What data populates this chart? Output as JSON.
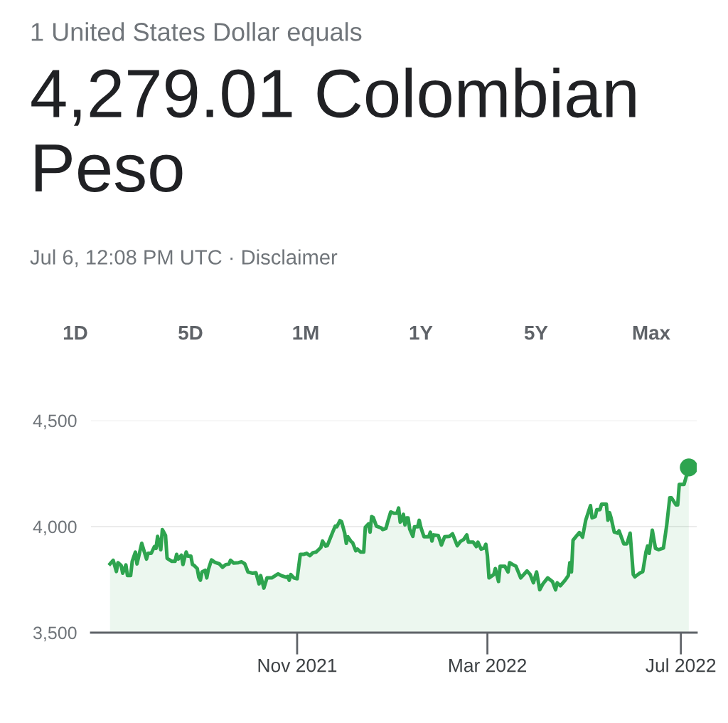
{
  "chart_data": {
    "type": "area",
    "title": "4,279.01 Colombian Peso",
    "annotations": [
      "1 United States Dollar equals",
      "Jul 6, 12:08 PM UTC · Disclaimer",
      "1D",
      "5D",
      "1M",
      "1Y",
      "5Y",
      "Max"
    ],
    "xlim": [
      "2021-06-24",
      "2022-07-11"
    ],
    "xticks": [
      {
        "value": "2021-11-01",
        "label": "Nov 2021"
      },
      {
        "value": "2022-03-01",
        "label": "Mar 2022"
      },
      {
        "value": "2022-07-01",
        "label": "Jul 2022"
      }
    ],
    "ylim": [
      3500,
      4500
    ],
    "yticks": [
      {
        "value": 3500,
        "label": "3,500"
      },
      {
        "value": 4000,
        "label": "4,000"
      },
      {
        "value": 4500,
        "label": "4,500"
      }
    ],
    "grid": "y",
    "series": [
      {
        "color": "#2ea44f",
        "x": [
          "2021-07-06",
          "2021-07-08",
          "2021-07-10",
          "2021-07-11",
          "2021-07-13",
          "2021-07-14",
          "2021-07-16",
          "2021-07-17",
          "2021-07-19",
          "2021-07-20",
          "2021-07-22",
          "2021-07-23",
          "2021-07-26",
          "2021-07-29",
          "2021-07-30",
          "2021-08-01",
          "2021-08-03",
          "2021-08-04",
          "2021-08-05",
          "2021-08-07",
          "2021-08-08",
          "2021-08-10",
          "2021-08-11",
          "2021-08-14",
          "2021-08-16",
          "2021-08-17",
          "2021-08-18",
          "2021-08-20",
          "2021-08-21",
          "2021-08-23",
          "2021-08-24",
          "2021-08-26",
          "2021-08-27",
          "2021-08-28",
          "2021-08-30",
          "2021-08-31",
          "2021-09-01",
          "2021-09-02",
          "2021-09-04",
          "2021-09-05",
          "2021-09-06",
          "2021-09-08",
          "2021-09-10",
          "2021-09-13",
          "2021-09-15",
          "2021-09-17",
          "2021-09-19",
          "2021-09-20",
          "2021-09-22",
          "2021-09-25",
          "2021-09-27",
          "2021-09-29",
          "2021-10-01",
          "2021-10-04",
          "2021-10-06",
          "2021-10-08",
          "2021-10-09",
          "2021-10-11",
          "2021-10-13",
          "2021-10-16",
          "2021-10-20",
          "2021-10-22",
          "2021-10-25",
          "2021-10-26",
          "2021-10-27",
          "2021-10-28",
          "2021-10-30",
          "2021-11-01",
          "2021-11-03",
          "2021-11-05",
          "2021-11-07",
          "2021-11-09",
          "2021-11-11",
          "2021-11-13",
          "2021-11-16",
          "2021-11-17",
          "2021-11-19",
          "2021-11-20",
          "2021-11-23",
          "2021-11-25",
          "2021-11-26",
          "2021-11-28",
          "2021-11-29",
          "2021-12-01",
          "2021-12-02",
          "2021-12-03",
          "2021-12-05",
          "2021-12-06",
          "2021-12-08",
          "2021-12-09",
          "2021-12-11",
          "2021-12-13",
          "2021-12-14",
          "2021-12-16",
          "2021-12-17",
          "2021-12-18",
          "2021-12-19",
          "2021-12-21",
          "2021-12-24",
          "2021-12-25",
          "2021-12-27",
          "2021-12-28",
          "2021-12-30",
          "2022-01-01",
          "2022-01-03",
          "2022-01-04",
          "2022-01-05",
          "2022-01-06",
          "2022-01-07",
          "2022-01-08",
          "2022-01-09",
          "2022-01-10",
          "2022-01-11",
          "2022-01-13",
          "2022-01-14",
          "2022-01-16",
          "2022-01-17",
          "2022-01-18",
          "2022-01-20",
          "2022-01-23",
          "2022-01-24",
          "2022-01-25",
          "2022-01-26",
          "2022-01-29",
          "2022-01-31",
          "2022-02-02",
          "2022-02-05",
          "2022-02-07",
          "2022-02-10",
          "2022-02-12",
          "2022-02-14",
          "2022-02-16",
          "2022-02-17",
          "2022-02-20",
          "2022-02-22",
          "2022-02-23",
          "2022-02-25",
          "2022-02-27",
          "2022-02-28",
          "2022-03-01",
          "2022-03-02",
          "2022-03-05",
          "2022-03-06",
          "2022-03-08",
          "2022-03-09",
          "2022-03-12",
          "2022-03-14",
          "2022-03-15",
          "2022-03-17",
          "2022-03-19",
          "2022-03-22",
          "2022-03-26",
          "2022-03-28",
          "2022-03-30",
          "2022-04-01",
          "2022-04-03",
          "2022-04-05",
          "2022-04-08",
          "2022-04-11",
          "2022-04-13",
          "2022-04-14",
          "2022-04-16",
          "2022-04-19",
          "2022-04-21",
          "2022-04-22",
          "2022-04-23",
          "2022-04-24",
          "2022-04-26",
          "2022-04-28",
          "2022-04-30",
          "2022-05-02",
          "2022-05-05",
          "2022-05-06",
          "2022-05-08",
          "2022-05-09",
          "2022-05-11",
          "2022-05-12",
          "2022-05-15",
          "2022-05-16",
          "2022-05-17",
          "2022-05-18",
          "2022-05-20",
          "2022-05-22",
          "2022-05-23",
          "2022-05-26",
          "2022-05-28",
          "2022-05-30",
          "2022-06-01",
          "2022-06-02",
          "2022-06-05",
          "2022-06-07",
          "2022-06-09",
          "2022-06-10",
          "2022-06-11",
          "2022-06-13",
          "2022-06-15",
          "2022-06-17",
          "2022-06-20",
          "2022-06-22",
          "2022-06-24",
          "2022-06-25",
          "2022-06-28",
          "2022-06-29",
          "2022-06-30",
          "2022-07-03",
          "2022-07-05",
          "2022-07-06"
        ],
        "values": [
          3824,
          3841,
          3788,
          3830,
          3817,
          3780,
          3819,
          3769,
          3769,
          3836,
          3880,
          3824,
          3921,
          3847,
          3874,
          3874,
          3906,
          3897,
          3954,
          3891,
          3986,
          3958,
          3850,
          3836,
          3836,
          3869,
          3847,
          3865,
          3821,
          3880,
          3861,
          3861,
          3821,
          3817,
          3802,
          3761,
          3747,
          3786,
          3794,
          3758,
          3797,
          3843,
          3832,
          3824,
          3808,
          3821,
          3824,
          3841,
          3828,
          3830,
          3834,
          3824,
          3786,
          3780,
          3783,
          3730,
          3769,
          3710,
          3758,
          3758,
          3777,
          3769,
          3761,
          3765,
          3747,
          3774,
          3758,
          3754,
          3869,
          3869,
          3874,
          3863,
          3877,
          3880,
          3902,
          3932,
          3908,
          3910,
          3966,
          4002,
          3999,
          4028,
          4024,
          3969,
          3921,
          3952,
          3930,
          3924,
          3886,
          3894,
          3880,
          3880,
          3997,
          4013,
          3974,
          4047,
          4043,
          4002,
          3994,
          3986,
          3991,
          4019,
          4069,
          4063,
          4063,
          4088,
          4021,
          4030,
          4058,
          4008,
          4041,
          4041,
          3988,
          3954,
          3999,
          3999,
          4030,
          3997,
          3952,
          3952,
          3974,
          3932,
          3961,
          3958,
          3913,
          3952,
          3954,
          3966,
          3910,
          3930,
          3939,
          3961,
          3927,
          3927,
          3906,
          3927,
          3894,
          3899,
          3917,
          3863,
          3758,
          3774,
          3802,
          3741,
          3813,
          3813,
          3786,
          3830,
          3821,
          3813,
          3758,
          3791,
          3774,
          3735,
          3786,
          3702,
          3730,
          3758,
          3741,
          3702,
          3735,
          3721,
          3747,
          3769,
          3830,
          3786,
          3936,
          3954,
          3972,
          3950,
          4030,
          4099,
          4041,
          4047,
          4080,
          4080,
          4106,
          4106,
          4030,
          4066,
          4041,
          3974,
          3969,
          3980,
          3919,
          3919,
          3969,
          3774,
          3763,
          3780,
          3788,
          3880,
          3908,
          3874,
          3983,
          3897,
          3891,
          3899,
          4002,
          4136,
          4136,
          4102,
          4102,
          4199,
          4199,
          4252,
          4279
        ]
      },
      {
        "type": "scatter",
        "color": "#2ea44f",
        "x": [
          "2022-07-06"
        ],
        "values": [
          4279
        ]
      }
    ]
  }
}
